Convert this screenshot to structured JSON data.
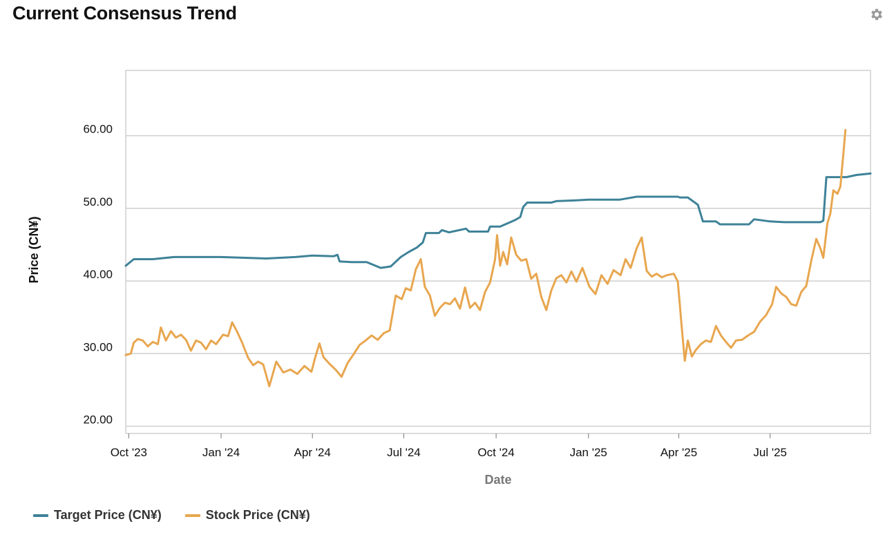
{
  "header": {
    "title": "Current Consensus Trend",
    "settings_icon": "gear-icon"
  },
  "chart_data": {
    "type": "line",
    "xlabel": "Date",
    "ylabel": "Price (CN¥)",
    "x_ticks": [
      "Oct '23",
      "Jan '24",
      "Apr '24",
      "Jul '24",
      "Oct '24",
      "Jan '25",
      "Apr '25",
      "Jul '25"
    ],
    "x_tick_dates": [
      "2023-10-01",
      "2024-01-01",
      "2024-04-01",
      "2024-07-01",
      "2024-10-01",
      "2025-01-01",
      "2025-04-01",
      "2025-07-01"
    ],
    "xlim": [
      "2023-09-28",
      "2025-10-09"
    ],
    "y_ticks": [
      "20.00",
      "30.00",
      "40.00",
      "50.00",
      "60.00"
    ],
    "ylim": [
      19.0,
      69.0
    ],
    "grid": "horizontal",
    "legend_position": "bottom-left",
    "series": [
      {
        "name": "Target Price (CN¥)",
        "color": "#3e8298",
        "step": true,
        "points": [
          [
            "2023-09-28",
            42.1
          ],
          [
            "2023-10-06",
            43.0
          ],
          [
            "2023-10-25",
            43.0
          ],
          [
            "2023-11-15",
            43.3
          ],
          [
            "2024-01-01",
            43.3
          ],
          [
            "2024-02-15",
            43.1
          ],
          [
            "2024-03-15",
            43.3
          ],
          [
            "2024-04-01",
            43.5
          ],
          [
            "2024-04-22",
            43.4
          ],
          [
            "2024-04-26",
            43.6
          ],
          [
            "2024-04-28",
            42.7
          ],
          [
            "2024-05-10",
            42.6
          ],
          [
            "2024-05-25",
            42.6
          ],
          [
            "2024-06-08",
            41.8
          ],
          [
            "2024-06-18",
            42.0
          ],
          [
            "2024-06-28",
            43.3
          ],
          [
            "2024-07-06",
            44.0
          ],
          [
            "2024-07-14",
            44.6
          ],
          [
            "2024-07-20",
            45.3
          ],
          [
            "2024-07-23",
            46.6
          ],
          [
            "2024-08-05",
            46.6
          ],
          [
            "2024-08-08",
            47.0
          ],
          [
            "2024-08-15",
            46.7
          ],
          [
            "2024-09-01",
            47.2
          ],
          [
            "2024-09-04",
            46.8
          ],
          [
            "2024-09-23",
            46.8
          ],
          [
            "2024-09-25",
            47.5
          ],
          [
            "2024-10-05",
            47.5
          ],
          [
            "2024-10-20",
            48.4
          ],
          [
            "2024-10-25",
            48.8
          ],
          [
            "2024-10-28",
            50.2
          ],
          [
            "2024-11-01",
            50.8
          ],
          [
            "2024-11-25",
            50.8
          ],
          [
            "2024-11-30",
            51.0
          ],
          [
            "2024-12-20",
            51.1
          ],
          [
            "2025-01-01",
            51.2
          ],
          [
            "2025-02-01",
            51.2
          ],
          [
            "2025-02-18",
            51.6
          ],
          [
            "2025-03-15",
            51.6
          ],
          [
            "2025-03-31",
            51.6
          ],
          [
            "2025-04-02",
            51.5
          ],
          [
            "2025-04-10",
            51.5
          ],
          [
            "2025-04-20",
            50.5
          ],
          [
            "2025-04-25",
            48.2
          ],
          [
            "2025-05-08",
            48.2
          ],
          [
            "2025-05-12",
            47.8
          ],
          [
            "2025-06-10",
            47.8
          ],
          [
            "2025-06-15",
            48.5
          ],
          [
            "2025-07-01",
            48.2
          ],
          [
            "2025-07-15",
            48.1
          ],
          [
            "2025-08-01",
            48.1
          ],
          [
            "2025-08-20",
            48.1
          ],
          [
            "2025-08-23",
            48.3
          ],
          [
            "2025-08-26",
            54.3
          ],
          [
            "2025-09-15",
            54.3
          ],
          [
            "2025-09-25",
            54.6
          ],
          [
            "2025-10-09",
            54.8
          ]
        ]
      },
      {
        "name": "Stock Price (CN¥)",
        "color": "#e8a64f",
        "step": false,
        "points": [
          [
            "2023-09-28",
            29.8
          ],
          [
            "2023-10-03",
            30.0
          ],
          [
            "2023-10-06",
            31.5
          ],
          [
            "2023-10-10",
            32.0
          ],
          [
            "2023-10-15",
            31.8
          ],
          [
            "2023-10-20",
            31.0
          ],
          [
            "2023-10-25",
            31.6
          ],
          [
            "2023-10-30",
            31.3
          ],
          [
            "2023-11-02",
            33.6
          ],
          [
            "2023-11-07",
            31.8
          ],
          [
            "2023-11-12",
            33.1
          ],
          [
            "2023-11-17",
            32.2
          ],
          [
            "2023-11-22",
            32.6
          ],
          [
            "2023-11-27",
            31.9
          ],
          [
            "2023-12-02",
            30.4
          ],
          [
            "2023-12-07",
            31.8
          ],
          [
            "2023-12-12",
            31.5
          ],
          [
            "2023-12-17",
            30.6
          ],
          [
            "2023-12-22",
            31.8
          ],
          [
            "2023-12-27",
            31.3
          ],
          [
            "2024-01-03",
            32.6
          ],
          [
            "2024-01-08",
            32.4
          ],
          [
            "2024-01-12",
            34.3
          ],
          [
            "2024-01-17",
            33.0
          ],
          [
            "2024-01-22",
            31.5
          ],
          [
            "2024-01-28",
            29.4
          ],
          [
            "2024-02-02",
            28.4
          ],
          [
            "2024-02-07",
            28.9
          ],
          [
            "2024-02-12",
            28.5
          ],
          [
            "2024-02-18",
            25.5
          ],
          [
            "2024-02-25",
            28.9
          ],
          [
            "2024-03-03",
            27.4
          ],
          [
            "2024-03-10",
            27.8
          ],
          [
            "2024-03-17",
            27.2
          ],
          [
            "2024-03-24",
            28.3
          ],
          [
            "2024-03-31",
            27.5
          ],
          [
            "2024-04-04",
            29.6
          ],
          [
            "2024-04-08",
            31.4
          ],
          [
            "2024-04-12",
            29.5
          ],
          [
            "2024-04-18",
            28.6
          ],
          [
            "2024-04-24",
            27.8
          ],
          [
            "2024-04-30",
            26.8
          ],
          [
            "2024-05-06",
            28.7
          ],
          [
            "2024-05-12",
            29.9
          ],
          [
            "2024-05-18",
            31.2
          ],
          [
            "2024-05-24",
            31.8
          ],
          [
            "2024-05-30",
            32.5
          ],
          [
            "2024-06-05",
            31.9
          ],
          [
            "2024-06-11",
            32.8
          ],
          [
            "2024-06-17",
            33.2
          ],
          [
            "2024-06-23",
            38.0
          ],
          [
            "2024-06-29",
            37.5
          ],
          [
            "2024-07-03",
            39.0
          ],
          [
            "2024-07-08",
            38.7
          ],
          [
            "2024-07-13",
            41.6
          ],
          [
            "2024-07-18",
            43.0
          ],
          [
            "2024-07-22",
            39.2
          ],
          [
            "2024-07-27",
            38.0
          ],
          [
            "2024-08-01",
            35.2
          ],
          [
            "2024-08-06",
            36.3
          ],
          [
            "2024-08-11",
            37.0
          ],
          [
            "2024-08-16",
            36.8
          ],
          [
            "2024-08-21",
            37.6
          ],
          [
            "2024-08-26",
            36.2
          ],
          [
            "2024-08-31",
            39.1
          ],
          [
            "2024-09-05",
            36.3
          ],
          [
            "2024-09-10",
            37.0
          ],
          [
            "2024-09-15",
            36.0
          ],
          [
            "2024-09-20",
            38.5
          ],
          [
            "2024-09-25",
            39.8
          ],
          [
            "2024-09-30",
            43.0
          ],
          [
            "2024-10-02",
            46.3
          ],
          [
            "2024-10-05",
            42.1
          ],
          [
            "2024-10-08",
            44.0
          ],
          [
            "2024-10-12",
            42.3
          ],
          [
            "2024-10-16",
            46.0
          ],
          [
            "2024-10-21",
            43.6
          ],
          [
            "2024-10-26",
            42.8
          ],
          [
            "2024-10-31",
            43.0
          ],
          [
            "2024-11-05",
            40.3
          ],
          [
            "2024-11-10",
            41.0
          ],
          [
            "2024-11-15",
            37.8
          ],
          [
            "2024-11-20",
            36.0
          ],
          [
            "2024-11-25",
            38.7
          ],
          [
            "2024-11-30",
            40.4
          ],
          [
            "2024-12-05",
            40.8
          ],
          [
            "2024-12-10",
            39.8
          ],
          [
            "2024-12-15",
            41.3
          ],
          [
            "2024-12-20",
            39.9
          ],
          [
            "2024-12-26",
            41.8
          ],
          [
            "2025-01-02",
            39.2
          ],
          [
            "2025-01-08",
            38.2
          ],
          [
            "2025-01-14",
            40.8
          ],
          [
            "2025-01-20",
            39.6
          ],
          [
            "2025-01-26",
            41.5
          ],
          [
            "2025-02-02",
            40.8
          ],
          [
            "2025-02-07",
            43.0
          ],
          [
            "2025-02-12",
            41.8
          ],
          [
            "2025-02-18",
            44.5
          ],
          [
            "2025-02-23",
            46.0
          ],
          [
            "2025-02-28",
            41.4
          ],
          [
            "2025-03-05",
            40.6
          ],
          [
            "2025-03-10",
            41.0
          ],
          [
            "2025-03-15",
            40.5
          ],
          [
            "2025-03-20",
            40.8
          ],
          [
            "2025-03-27",
            41.0
          ],
          [
            "2025-03-31",
            39.9
          ],
          [
            "2025-04-04",
            33.5
          ],
          [
            "2025-04-07",
            29.0
          ],
          [
            "2025-04-10",
            31.8
          ],
          [
            "2025-04-14",
            29.6
          ],
          [
            "2025-04-18",
            30.5
          ],
          [
            "2025-04-23",
            31.3
          ],
          [
            "2025-04-28",
            31.8
          ],
          [
            "2025-05-03",
            31.6
          ],
          [
            "2025-05-08",
            33.8
          ],
          [
            "2025-05-13",
            32.5
          ],
          [
            "2025-05-18",
            31.6
          ],
          [
            "2025-05-23",
            30.8
          ],
          [
            "2025-05-28",
            31.8
          ],
          [
            "2025-06-03",
            31.9
          ],
          [
            "2025-06-09",
            32.5
          ],
          [
            "2025-06-15",
            33.0
          ],
          [
            "2025-06-21",
            34.4
          ],
          [
            "2025-06-27",
            35.3
          ],
          [
            "2025-07-03",
            36.8
          ],
          [
            "2025-07-07",
            39.2
          ],
          [
            "2025-07-12",
            38.3
          ],
          [
            "2025-07-17",
            37.8
          ],
          [
            "2025-07-22",
            36.8
          ],
          [
            "2025-07-27",
            36.6
          ],
          [
            "2025-08-01",
            38.5
          ],
          [
            "2025-08-06",
            39.3
          ],
          [
            "2025-08-11",
            42.8
          ],
          [
            "2025-08-16",
            45.8
          ],
          [
            "2025-08-20",
            44.5
          ],
          [
            "2025-08-23",
            43.2
          ],
          [
            "2025-08-27",
            47.9
          ],
          [
            "2025-08-30",
            49.3
          ],
          [
            "2025-09-02",
            52.5
          ],
          [
            "2025-09-06",
            52.0
          ],
          [
            "2025-09-09",
            53.0
          ],
          [
            "2025-09-12",
            57.6
          ],
          [
            "2025-09-14",
            60.8
          ]
        ]
      }
    ]
  }
}
